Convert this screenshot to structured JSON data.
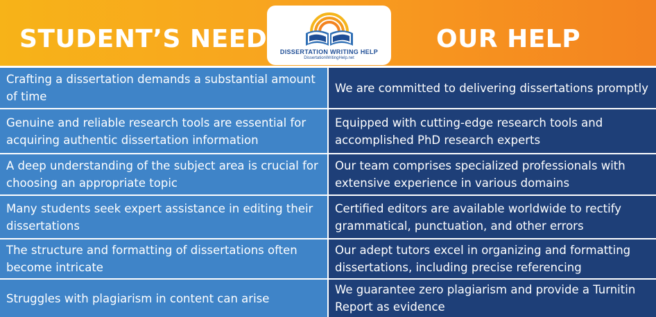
{
  "header": {
    "left_title": "STUDENT’S NEED",
    "right_title": "OUR HELP",
    "logo": {
      "title": "DISSERTATION WRITING HELP",
      "url": "DissertationWritingHelp.net",
      "icon": "open-book-with-sun-icon"
    }
  },
  "colors": {
    "header_gradient_start": "#f7b318",
    "header_gradient_end": "#f38320",
    "need_cell": "#3f84c8",
    "help_cell": "#1e3f78",
    "logo_blue": "#1f4e96"
  },
  "rows": [
    {
      "need": "Crafting a dissertation demands a substantial amount of time",
      "help": "We are committed to delivering dissertations promptly"
    },
    {
      "need": "Genuine and reliable research tools are essential for acquiring authentic dissertation information",
      "help": "Equipped with cutting-edge research tools and accomplished PhD research experts"
    },
    {
      "need": "A deep understanding of the subject area is crucial for choosing an appropriate topic",
      "help": "Our team comprises specialized professionals with extensive experience in various domains"
    },
    {
      "need": "Many students seek expert assistance in editing their dissertations",
      "help": "Certified editors are available worldwide to rectify grammatical, punctuation, and other errors"
    },
    {
      "need": "The structure and formatting of dissertations often become intricate",
      "help": "Our adept tutors excel in organizing and formatting dissertations, including precise referencing"
    },
    {
      "need": "Struggles with plagiarism in content can arise",
      "help": "We guarantee zero plagiarism and provide a Turnitin Report as evidence"
    }
  ]
}
